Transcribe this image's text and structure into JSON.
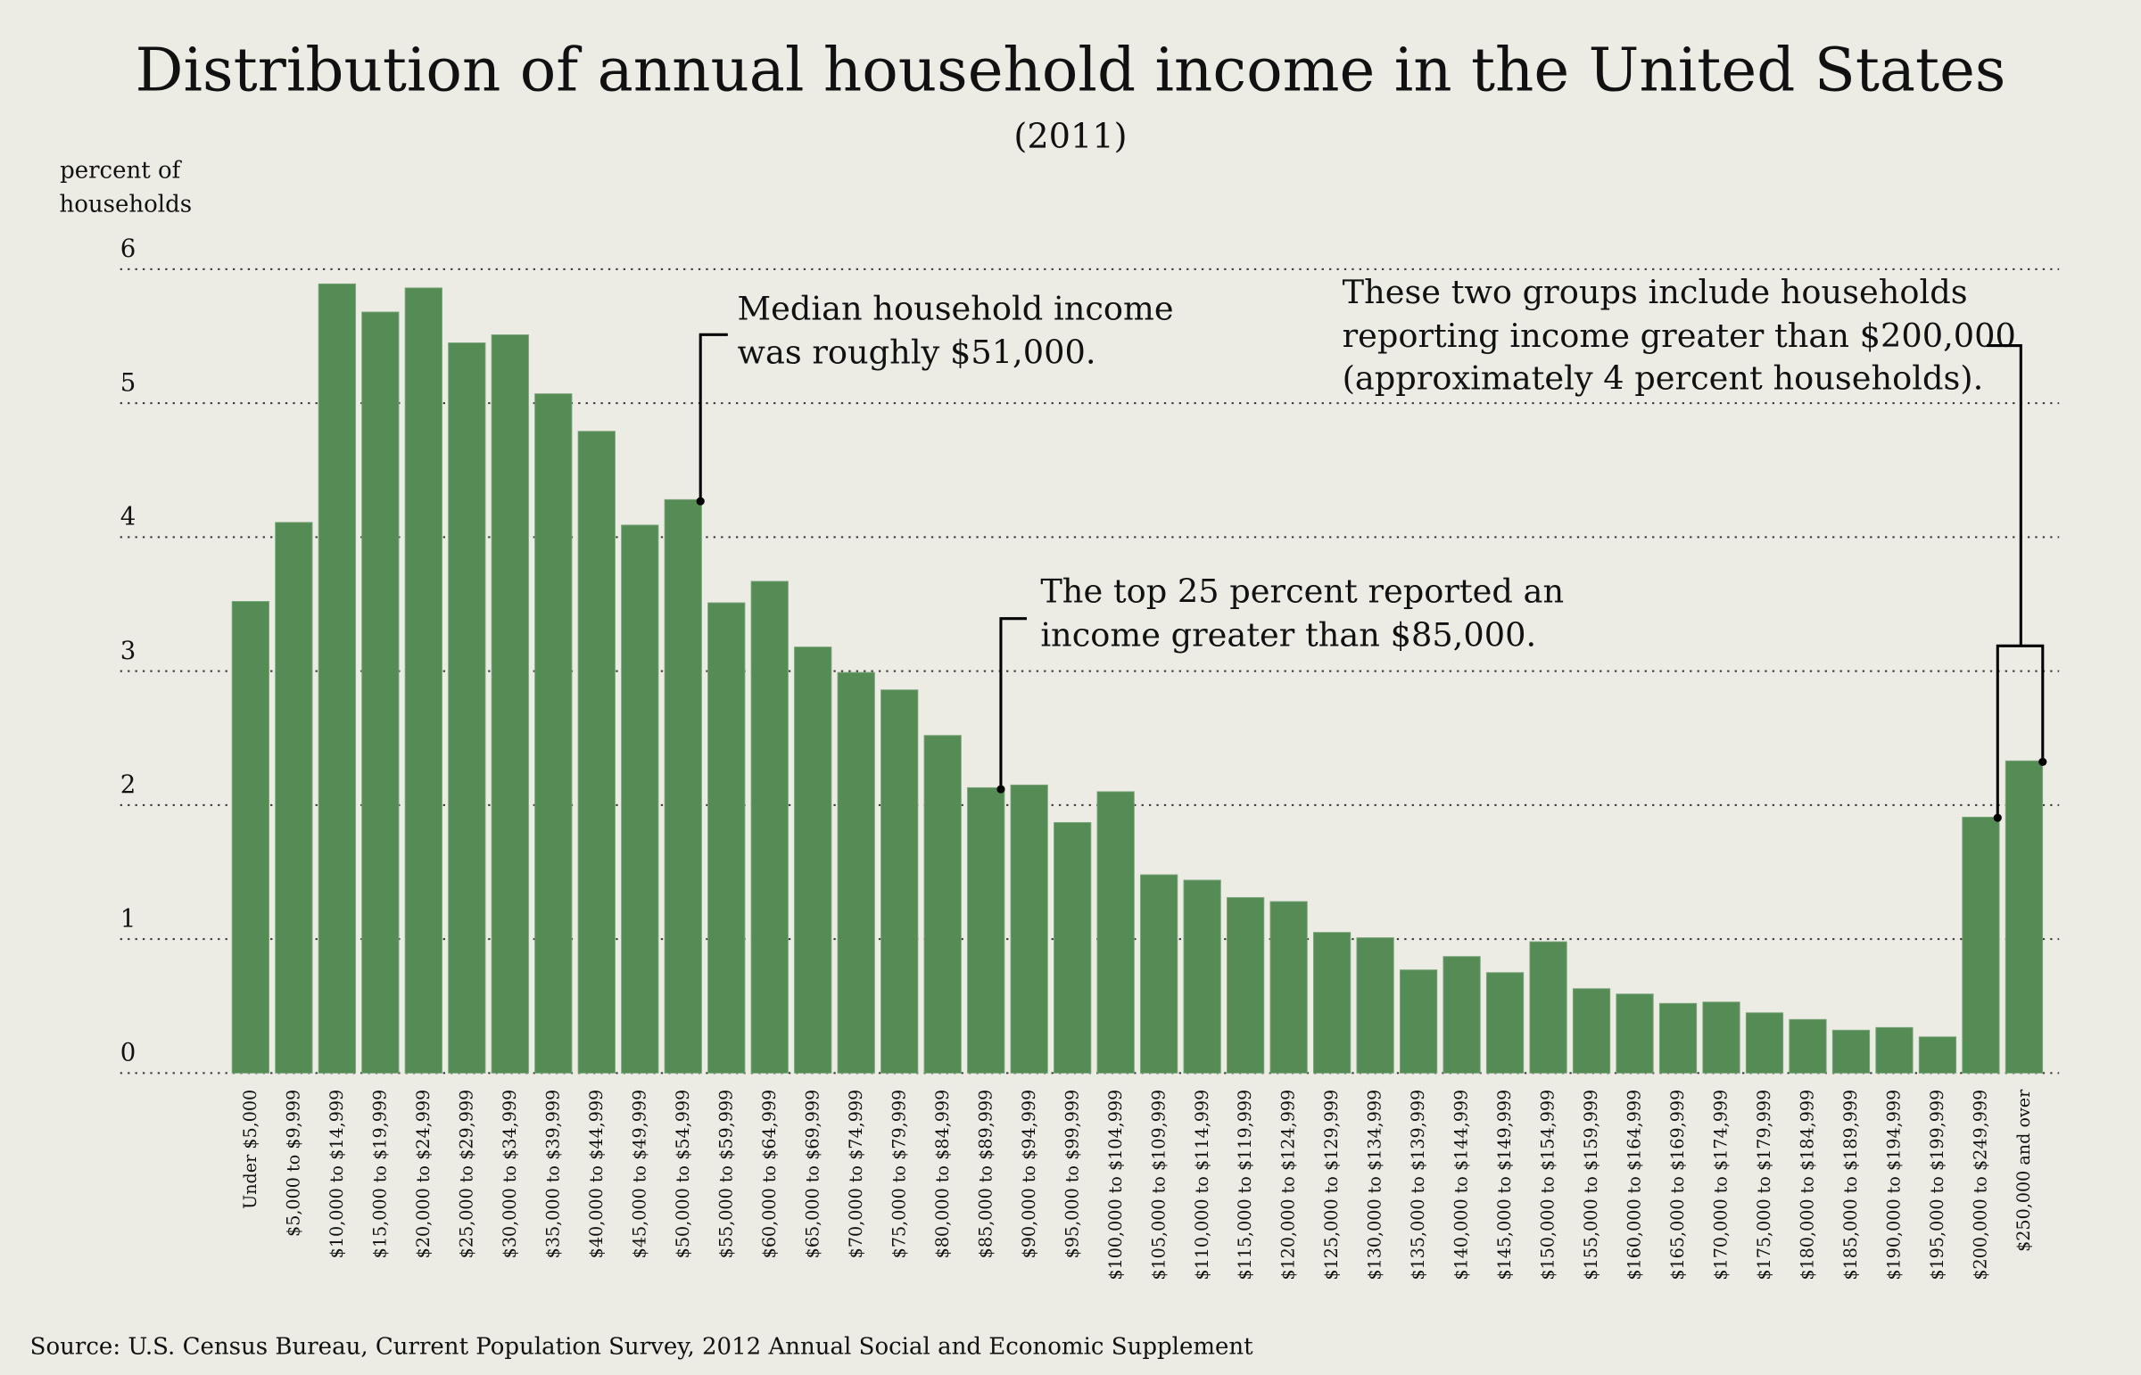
{
  "chart_data": {
    "type": "bar",
    "title": "Distribution of annual household income in the United States",
    "subtitle": "(2011)",
    "ylabel": [
      "percent of",
      "households"
    ],
    "ylim": [
      0,
      6
    ],
    "yticks": [
      "0",
      "1",
      "2",
      "3",
      "4",
      "5",
      "6"
    ],
    "grid": true,
    "bar_color": "#558b55",
    "categories": [
      "Under $5,000",
      "$5,000 to $9,999",
      "$10,000 to $14,999",
      "$15,000 to $19,999",
      "$20,000 to $24,999",
      "$25,000 to $29,999",
      "$30,000 to $34,999",
      "$35,000 to $39,999",
      "$40,000 to $44,999",
      "$45,000 to $49,999",
      "$50,000 to $54,999",
      "$55,000 to $59,999",
      "$60,000 to $64,999",
      "$65,000 to $69,999",
      "$70,000 to $74,999",
      "$75,000 to $79,999",
      "$80,000 to $84,999",
      "$85,000 to $89,999",
      "$90,000 to $94,999",
      "$95,000 to $99,999",
      "$100,000 to $104,999",
      "$105,000 to $109,999",
      "$110,000 to $114,999",
      "$115,000 to $119,999",
      "$120,000 to $124,999",
      "$125,000 to $129,999",
      "$130,000 to $134,999",
      "$135,000 to $139,999",
      "$140,000 to $144,999",
      "$145,000 to $149,999",
      "$150,000 to $154,999",
      "$155,000 to $159,999",
      "$160,000 to $164,999",
      "$165,000 to $169,999",
      "$170,000 to $174,999",
      "$175,000 to $179,999",
      "$180,000 to $184,999",
      "$185,000 to $189,999",
      "$190,000 to $194,999",
      "$195,000 to $199,999",
      "$200,000 to $249,999",
      "$250,000 and over"
    ],
    "values": [
      3.52,
      4.11,
      5.89,
      5.68,
      5.86,
      5.45,
      5.51,
      5.07,
      4.79,
      4.09,
      4.28,
      3.51,
      3.67,
      3.18,
      2.99,
      2.86,
      2.52,
      2.13,
      2.15,
      1.87,
      2.1,
      1.48,
      1.44,
      1.31,
      1.28,
      1.05,
      1.01,
      0.77,
      0.87,
      0.75,
      0.98,
      0.63,
      0.59,
      0.52,
      0.53,
      0.45,
      0.4,
      0.32,
      0.34,
      0.27,
      1.91,
      2.33
    ],
    "annotations": [
      {
        "lines": [
          "Median household income",
          "was roughly $51,000."
        ],
        "points_to": [
          "$50,000 to $54,999"
        ]
      },
      {
        "lines": [
          "The top 25 percent reported an",
          "income greater than $85,000."
        ],
        "points_to": [
          "$85,000 to $89,999"
        ]
      },
      {
        "lines": [
          "These two groups include households",
          "reporting income greater than $200,000",
          "(approximately 4 percent households)."
        ],
        "points_to": [
          "$200,000 to $249,999",
          "$250,000 and over"
        ]
      }
    ],
    "source": "Source: U.S. Census Bureau, Current Population Survey, 2012 Annual Social and Economic Supplement"
  }
}
